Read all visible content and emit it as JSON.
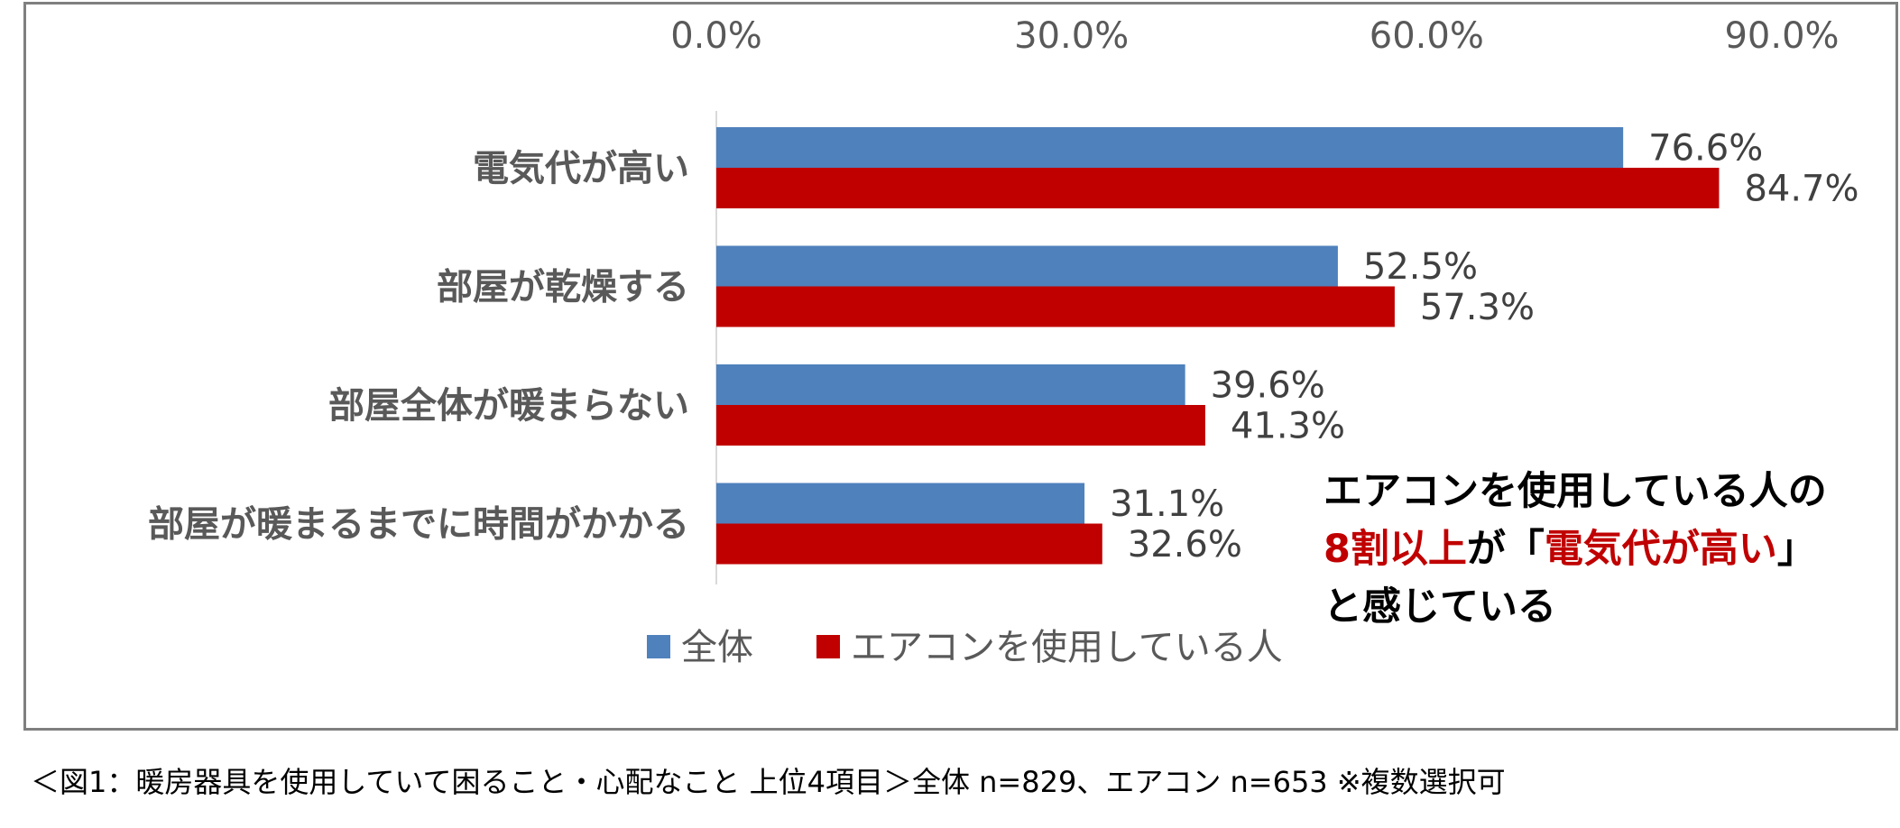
{
  "chart_data": {
    "type": "bar",
    "orientation": "horizontal",
    "categories": [
      "電気代が高い",
      "部屋が乾燥する",
      "部屋全体が暖まらない",
      "部屋が暖まるまでに時間がかかる"
    ],
    "series": [
      {
        "name": "全体",
        "color": "#4f81bd",
        "values": [
          76.6,
          52.5,
          39.6,
          31.1
        ],
        "labels": [
          "76.6%",
          "52.5%",
          "39.6%",
          "31.1%"
        ]
      },
      {
        "name": "エアコンを使用している人",
        "color": "#c00000",
        "values": [
          84.7,
          57.3,
          41.3,
          32.6
        ],
        "labels": [
          "84.7%",
          "57.3%",
          "41.3%",
          "32.6%"
        ]
      }
    ],
    "xlim": [
      0,
      90
    ],
    "ticks": [
      0,
      30,
      60,
      90
    ],
    "tick_labels": [
      "0.0%",
      "30.0%",
      "60.0%",
      "90.0%"
    ],
    "axis_position": "top",
    "grid": false,
    "legend_position": "bottom"
  },
  "annotation": {
    "line1": "エアコンを使用している人の",
    "line2_highlight1": "8割以上",
    "line2_mid": "が「",
    "line2_highlight2": "電気代が高い",
    "line2_end": "」",
    "line3": "と感じている"
  },
  "caption": "＜図1：暖房器具を使用していて困ること・心配なこと 上位4項目＞全体 n=829、エアコン n=653 ※複数選択可"
}
